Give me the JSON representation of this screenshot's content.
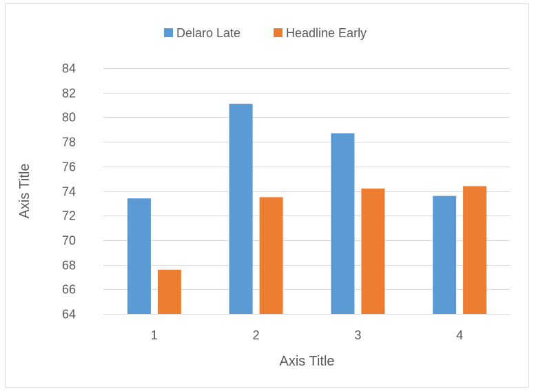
{
  "chart_data": {
    "type": "bar",
    "categories": [
      "1",
      "2",
      "3",
      "4"
    ],
    "series": [
      {
        "name": "Delaro Late",
        "values": [
          73.4,
          81.1,
          78.7,
          73.6
        ],
        "color": "#5b9bd5"
      },
      {
        "name": "Headline Early",
        "values": [
          67.6,
          73.5,
          74.2,
          74.4
        ],
        "color": "#ed7d31"
      }
    ],
    "xlabel": "Axis Title",
    "ylabel": "Axis Title",
    "ylim": [
      64,
      84
    ],
    "yticks": [
      64,
      66,
      68,
      70,
      72,
      74,
      76,
      78,
      80,
      82,
      84
    ],
    "grid": true,
    "gridline_color": "#d9d9d9",
    "legend_position": "top-center"
  }
}
